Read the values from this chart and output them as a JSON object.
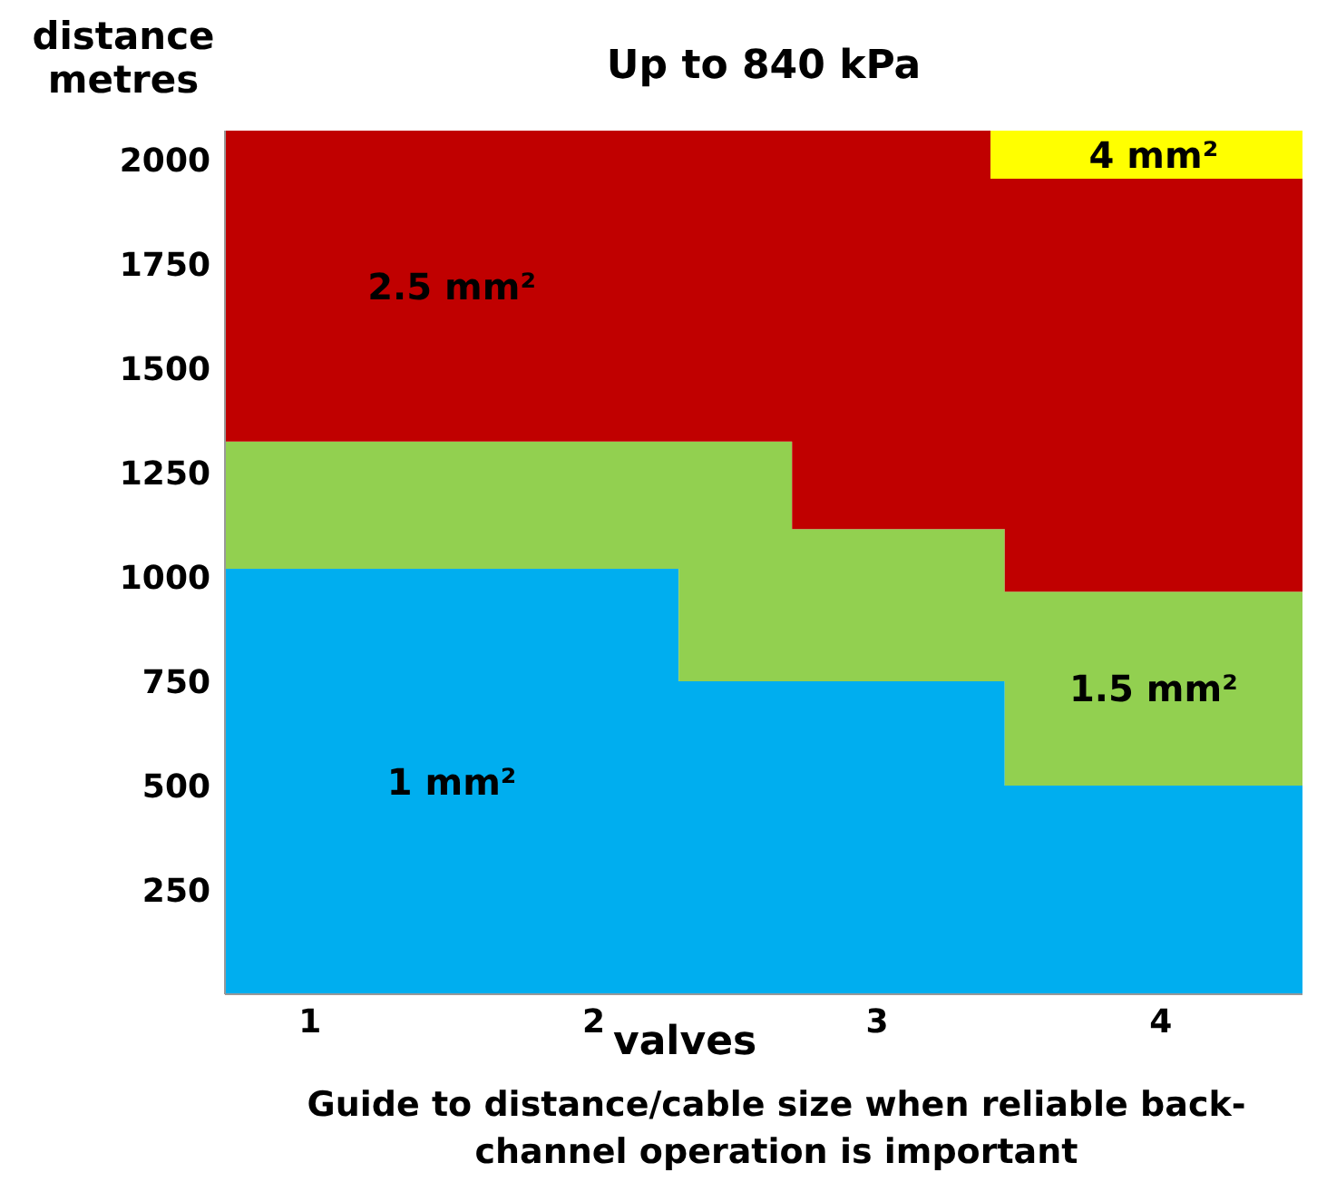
{
  "chart_data": {
    "type": "area",
    "stacked": true,
    "title": "Up to 840 kPa",
    "xlabel": "valves",
    "ylabel": "distance\nmetres",
    "x": [
      0.7,
      2.3,
      2.7,
      3.4,
      3.45,
      4.5
    ],
    "series": [
      {
        "name": "1 mm²",
        "color": "#00aeef",
        "values": [
          1020,
          750,
          750,
          750,
          500,
          500
        ]
      },
      {
        "name": "1.5 mm²",
        "color": "#92d050",
        "values": [
          305,
          575,
          365,
          365,
          465,
          465
        ]
      },
      {
        "name": "2.5 mm²",
        "color": "#c00000",
        "values": [
          745,
          745,
          955,
          840,
          990,
          990
        ]
      },
      {
        "name": "4 mm²",
        "color": "#ffff00",
        "values": [
          0,
          0,
          0,
          115,
          115,
          115
        ]
      }
    ],
    "xlim": [
      0.7,
      4.5
    ],
    "xticks": [
      1,
      2,
      3,
      4
    ],
    "ylim": [
      0,
      2070
    ],
    "yticks": [
      250,
      500,
      750,
      1000,
      1250,
      1500,
      1750,
      2000
    ],
    "annotations": [
      "Guide to distance/cable size when reliable back-channel operation is important"
    ]
  }
}
